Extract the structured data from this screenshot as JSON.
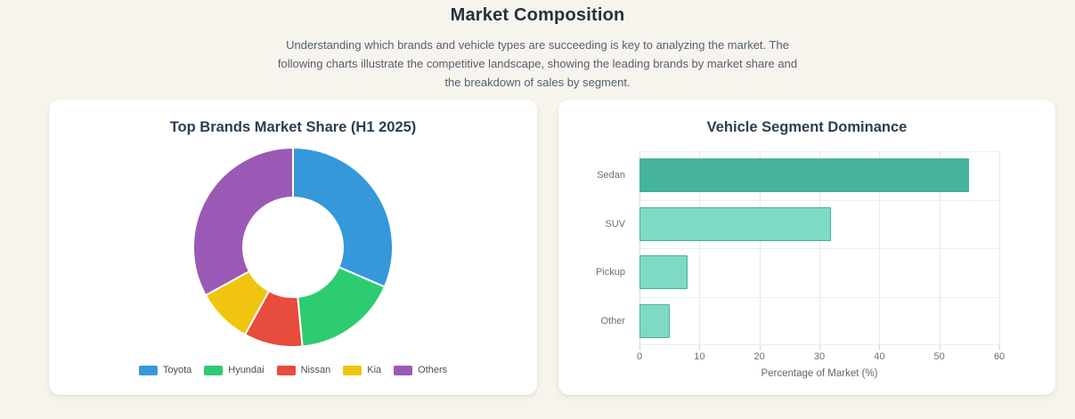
{
  "header": {
    "title": "Market Composition",
    "subtitle": "Understanding which brands and vehicle types are succeeding is key to analyzing the market. The following charts illustrate the competitive landscape, showing the leading brands by market share and the breakdown of sales by segment."
  },
  "chart_data": [
    {
      "type": "pie",
      "donut": true,
      "cutout_ratio": 0.5,
      "title": "Top Brands Market Share (H1 2025)",
      "labels": [
        "Toyota",
        "Hyundai",
        "Nissan",
        "Kia",
        "Others"
      ],
      "values": [
        31.5,
        17,
        9.5,
        9,
        33
      ],
      "unit": "%",
      "colors": [
        "#3498db",
        "#2ecc71",
        "#e74c3c",
        "#f1c40f",
        "#9b59b6"
      ],
      "legend_position": "bottom",
      "start_angle": "top",
      "direction": "clockwise",
      "segment_gap_color": "#ffffff"
    },
    {
      "type": "bar",
      "orientation": "horizontal",
      "title": "Vehicle Segment Dominance",
      "categories": [
        "Sedan",
        "SUV",
        "Pickup",
        "Other"
      ],
      "values": [
        55,
        32,
        8,
        5
      ],
      "xlabel": "Percentage of Market (%)",
      "xlim": [
        0,
        60
      ],
      "xticks": [
        0,
        10,
        20,
        30,
        40,
        50,
        60
      ],
      "grid": true,
      "bar_colors": [
        "#45b39d",
        "#7edac5",
        "#7edac5",
        "#7edac5"
      ],
      "bar_border_color": "#45b39d"
    }
  ],
  "theme": {
    "page_background": "#f7f3ed",
    "card_background": "#ffffff",
    "heading_color": "#25313e",
    "subtitle_color": "#56616b",
    "card_title_color": "#2c3e50",
    "axis_text_color": "#696e73",
    "gridline_color": "#e9e9e9"
  }
}
